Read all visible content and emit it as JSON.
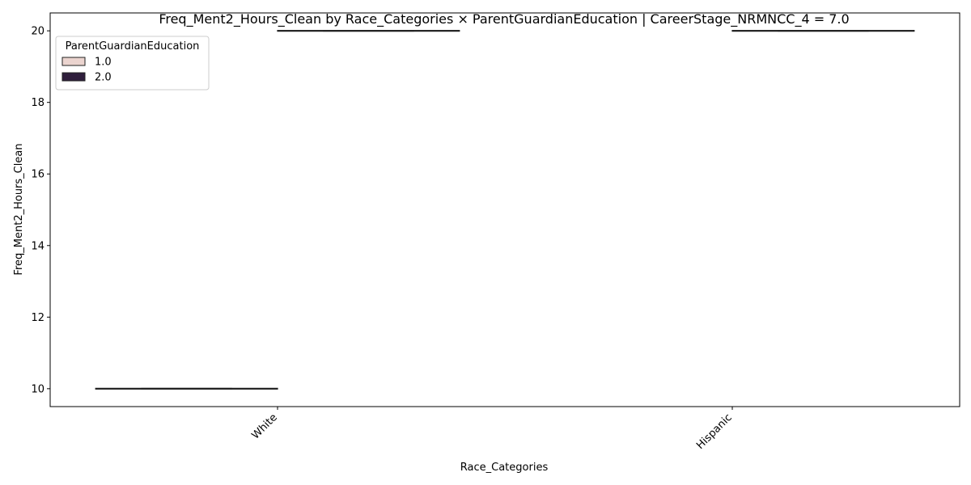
{
  "chart_data": {
    "type": "box",
    "title": "Freq_Ment2_Hours_Clean by Race_Categories × ParentGuardianEducation | CareerStage_NRMNCC_4 = 7.0",
    "xlabel": "Race_Categories",
    "ylabel": "Freq_Ment2_Hours_Clean",
    "categories": [
      "White",
      "Hispanic"
    ],
    "ylim": [
      9.5,
      20.5
    ],
    "yticks": [
      10,
      12,
      14,
      16,
      18,
      20
    ],
    "legend": {
      "title": "ParentGuardianEducation",
      "placement": "upper-left"
    },
    "series": [
      {
        "name": "1.0",
        "color": "#ebd4cf",
        "values": [
          10,
          null
        ]
      },
      {
        "name": "2.0",
        "color": "#2f1e3c",
        "values": [
          20,
          20
        ]
      }
    ]
  }
}
